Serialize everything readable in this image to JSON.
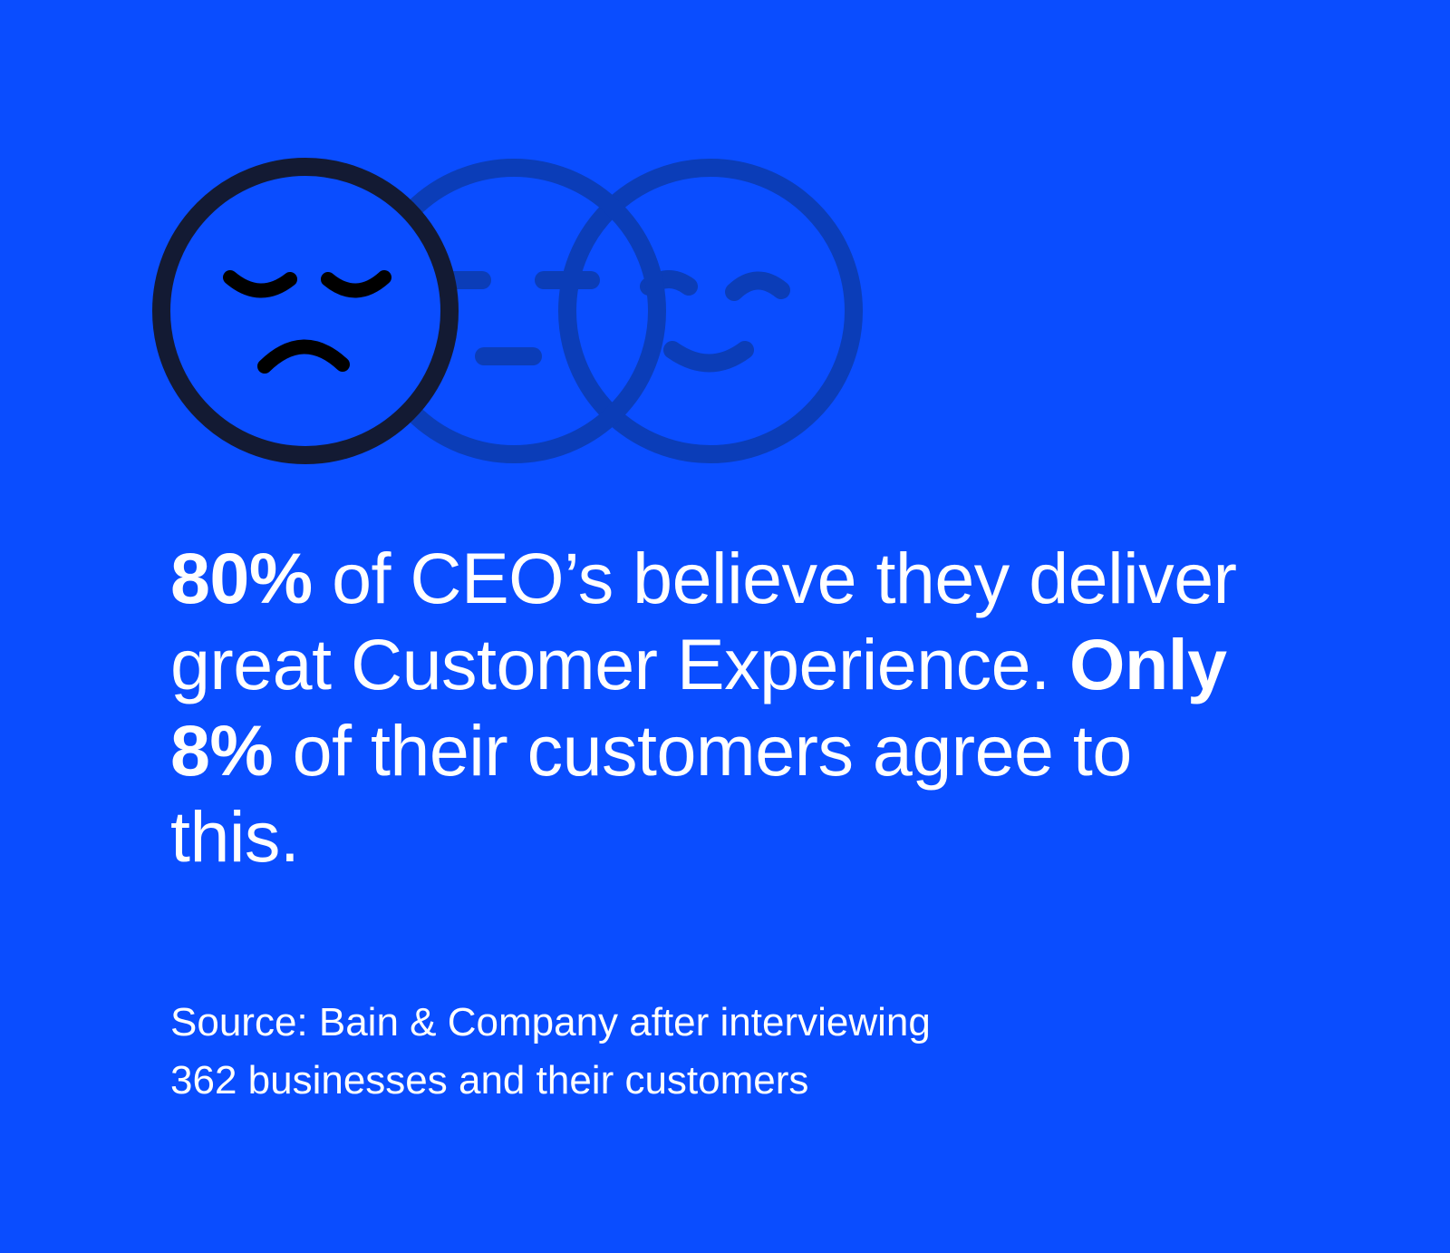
{
  "colors": {
    "background": "#0a4dff",
    "text": "#ffffff",
    "sad_face_stroke": "#131a33",
    "faded_face_stroke": "#0b3db8"
  },
  "icons": [
    "smiling-face-icon",
    "neutral-face-icon",
    "sad-face-icon"
  ],
  "headline": {
    "stat1": "80%",
    "text1": " of CEO’s believe they deliver great Customer Experience. ",
    "stat2": "Only 8%",
    "text2": " of their customers agree to this."
  },
  "source": {
    "line1": "Source: Bain & Company after interviewing",
    "line2": "362 businesses and their customers"
  }
}
